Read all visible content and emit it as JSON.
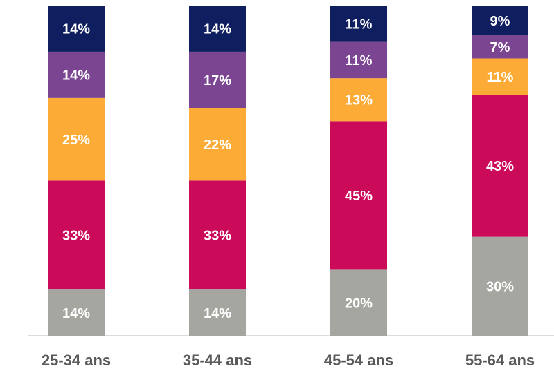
{
  "chart_data": {
    "type": "stacked_bar",
    "categories": [
      "25-34 ans",
      "35-44 ans",
      "45-54 ans",
      "55-64 ans"
    ],
    "series": [
      {
        "color": "#a6a6a0",
        "values": [
          14,
          14,
          20,
          30
        ],
        "value_labels": [
          "14%",
          "14%",
          "20%",
          "30%"
        ]
      },
      {
        "color": "#cc0a5a",
        "values": [
          33,
          33,
          45,
          43
        ],
        "value_labels": [
          "33%",
          "33%",
          "45%",
          "43%"
        ]
      },
      {
        "color": "#fbab36",
        "values": [
          25,
          22,
          13,
          11
        ],
        "value_labels": [
          "25%",
          "22%",
          "13%",
          "11%"
        ]
      },
      {
        "color": "#7b4592",
        "values": [
          14,
          17,
          11,
          7
        ],
        "value_labels": [
          "14%",
          "17%",
          "11%",
          "7%"
        ]
      },
      {
        "color": "#0f1e5e",
        "values": [
          14,
          14,
          11,
          9
        ],
        "value_labels": [
          "14%",
          "14%",
          "11%",
          "9%"
        ]
      }
    ],
    "ylim": [
      0,
      100
    ]
  }
}
